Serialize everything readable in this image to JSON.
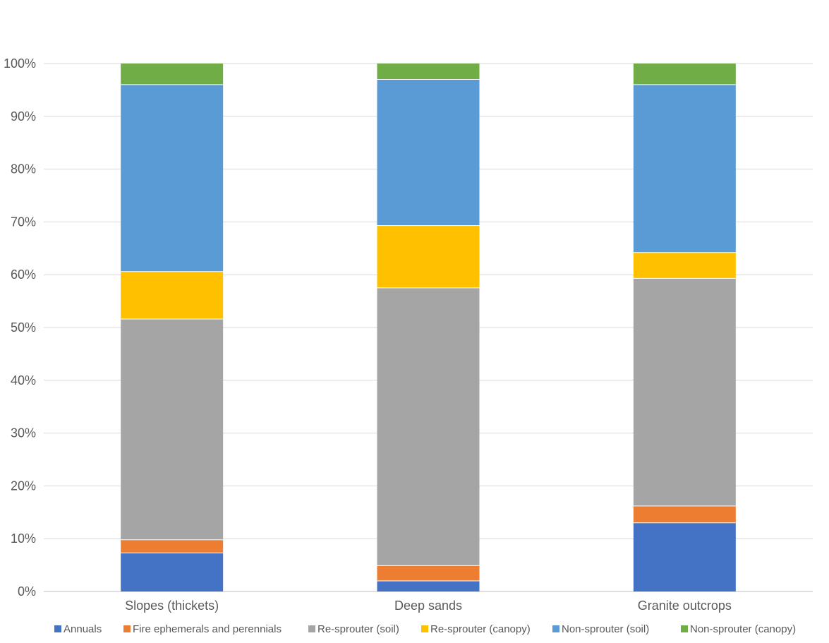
{
  "chart_data": {
    "type": "bar",
    "stacked": "percent",
    "title": "",
    "xlabel": "",
    "ylabel": "",
    "ylim": [
      0,
      100
    ],
    "yticks": [
      "0%",
      "10%",
      "20%",
      "30%",
      "40%",
      "50%",
      "60%",
      "70%",
      "80%",
      "90%",
      "100%"
    ],
    "grid": true,
    "legend_position": "bottom",
    "categories": [
      "Slopes (thickets)",
      "Deep sands",
      "Granite outcrops"
    ],
    "series": [
      {
        "name": "Annuals",
        "color": "#4472C4",
        "values": [
          7.3,
          2.0,
          13.0
        ]
      },
      {
        "name": "Fire ephemerals and perennials",
        "color": "#ED7D31",
        "values": [
          2.5,
          2.9,
          3.2
        ]
      },
      {
        "name": "Re-sprouter (soil)",
        "color": "#A5A5A5",
        "values": [
          41.8,
          52.6,
          43.1
        ]
      },
      {
        "name": "Re-sprouter (canopy)",
        "color": "#FFC000",
        "values": [
          9.0,
          11.8,
          4.9
        ]
      },
      {
        "name": "Non-sprouter (soil)",
        "color": "#5B9BD5",
        "values": [
          35.4,
          27.7,
          31.8
        ]
      },
      {
        "name": "Non-sprouter (canopy)",
        "color": "#70AD47",
        "values": [
          4.0,
          3.0,
          4.0
        ]
      }
    ]
  }
}
